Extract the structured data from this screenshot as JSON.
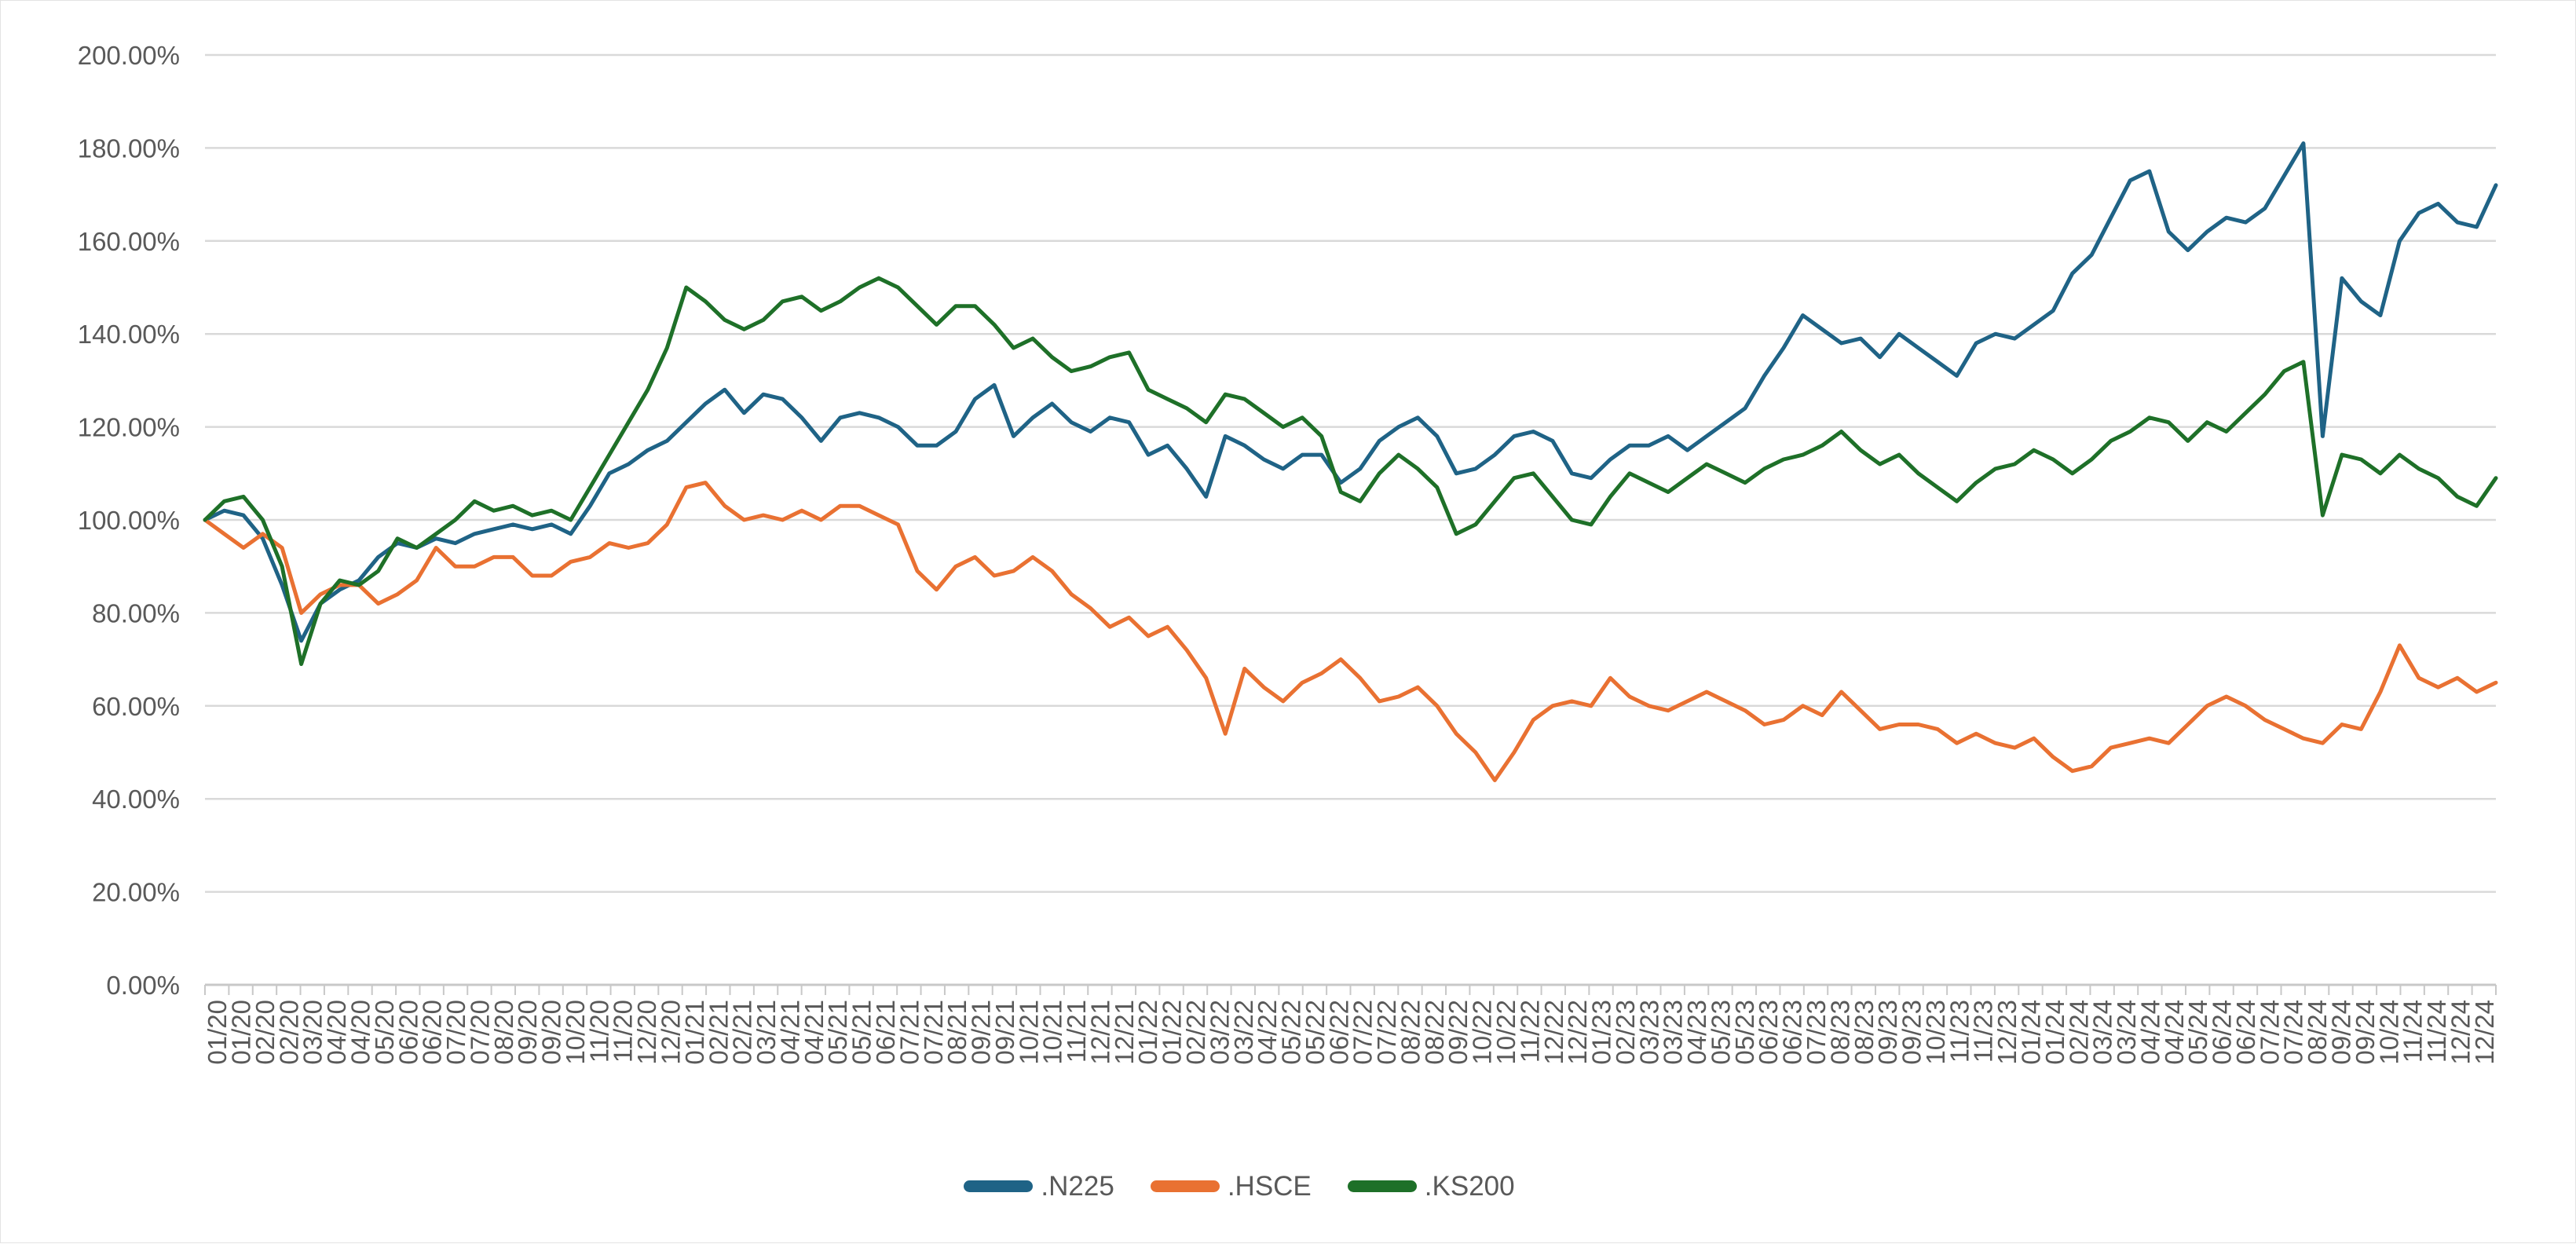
{
  "chart_data": {
    "type": "line",
    "title": "",
    "xlabel": "",
    "ylabel": "",
    "grid": true,
    "legend_position": "bottom",
    "y_axis": {
      "min": 0,
      "max": 200,
      "step": 20,
      "tick_labels": [
        "0.00%",
        "20.00%",
        "40.00%",
        "60.00%",
        "80.00%",
        "100.00%",
        "120.00%",
        "140.00%",
        "160.00%",
        "180.00%",
        "200.00%"
      ]
    },
    "x_axis": {
      "tick_labels": [
        "01/20",
        "01/20",
        "02/20",
        "02/20",
        "03/20",
        "04/20",
        "04/20",
        "05/20",
        "06/20",
        "06/20",
        "07/20",
        "07/20",
        "08/20",
        "09/20",
        "09/20",
        "10/20",
        "11/20",
        "11/20",
        "12/20",
        "12/20",
        "01/21",
        "02/21",
        "02/21",
        "03/21",
        "04/21",
        "04/21",
        "05/21",
        "05/21",
        "06/21",
        "07/21",
        "07/21",
        "08/21",
        "09/21",
        "09/21",
        "10/21",
        "10/21",
        "11/21",
        "12/21",
        "12/21",
        "01/22",
        "01/22",
        "02/22",
        "03/22",
        "03/22",
        "04/22",
        "05/22",
        "05/22",
        "06/22",
        "07/22",
        "07/22",
        "08/22",
        "08/22",
        "09/22",
        "10/22",
        "10/22",
        "11/22",
        "12/22",
        "12/22",
        "01/23",
        "02/23",
        "03/23",
        "03/23",
        "04/23",
        "05/23",
        "05/23",
        "06/23",
        "06/23",
        "07/23",
        "08/23",
        "08/23",
        "09/23",
        "09/23",
        "10/23",
        "11/23",
        "11/23",
        "12/23",
        "01/24",
        "01/24",
        "02/24",
        "03/24",
        "03/24",
        "04/24",
        "04/24",
        "05/24",
        "06/24",
        "06/24",
        "07/24",
        "07/24",
        "08/24",
        "09/24",
        "09/24",
        "10/24",
        "11/24",
        "11/24",
        "12/24",
        "12/24"
      ]
    },
    "series": [
      {
        "name": ".N225",
        "color": "#1F6386",
        "values": [
          100,
          102,
          101,
          96,
          86,
          74,
          82,
          85,
          87,
          92,
          95,
          94,
          96,
          95,
          97,
          98,
          99,
          98,
          99,
          97,
          103,
          110,
          112,
          115,
          117,
          121,
          125,
          128,
          123,
          127,
          126,
          122,
          117,
          122,
          123,
          122,
          120,
          116,
          116,
          119,
          126,
          129,
          118,
          122,
          125,
          121,
          119,
          122,
          121,
          114,
          116,
          111,
          105,
          118,
          116,
          113,
          111,
          114,
          114,
          108,
          111,
          117,
          120,
          122,
          118,
          110,
          111,
          114,
          118,
          119,
          117,
          110,
          109,
          113,
          116,
          116,
          118,
          115,
          118,
          121,
          124,
          131,
          137,
          144,
          141,
          138,
          139,
          135,
          140,
          137,
          134,
          131,
          138,
          140,
          139,
          142,
          145,
          153,
          157,
          165,
          173,
          175,
          162,
          158,
          162,
          165,
          164,
          167,
          174,
          181,
          118,
          152,
          147,
          144,
          160,
          166,
          168,
          164,
          163,
          172
        ]
      },
      {
        "name": ".HSCE",
        "color": "#E97132",
        "values": [
          100,
          97,
          94,
          97,
          94,
          80,
          84,
          86,
          86,
          82,
          84,
          87,
          94,
          90,
          90,
          92,
          92,
          88,
          88,
          91,
          92,
          95,
          94,
          95,
          99,
          107,
          108,
          103,
          100,
          101,
          100,
          102,
          100,
          103,
          103,
          101,
          99,
          89,
          85,
          90,
          92,
          88,
          89,
          92,
          89,
          84,
          81,
          77,
          79,
          75,
          77,
          72,
          66,
          54,
          68,
          64,
          61,
          65,
          67,
          70,
          66,
          61,
          62,
          64,
          60,
          54,
          50,
          44,
          50,
          57,
          60,
          61,
          60,
          66,
          62,
          60,
          59,
          61,
          63,
          61,
          59,
          56,
          57,
          60,
          58,
          63,
          59,
          55,
          56,
          56,
          55,
          52,
          54,
          52,
          51,
          53,
          49,
          46,
          47,
          51,
          52,
          53,
          52,
          56,
          60,
          62,
          60,
          57,
          55,
          53,
          52,
          56,
          55,
          63,
          73,
          66,
          64,
          66,
          63,
          65
        ]
      },
      {
        "name": ".KS200",
        "color": "#1E7028",
        "values": [
          100,
          104,
          105,
          100,
          90,
          69,
          82,
          87,
          86,
          89,
          96,
          94,
          97,
          100,
          104,
          102,
          103,
          101,
          102,
          100,
          107,
          114,
          121,
          128,
          137,
          150,
          147,
          143,
          141,
          143,
          147,
          148,
          145,
          147,
          150,
          152,
          150,
          146,
          142,
          146,
          146,
          142,
          137,
          139,
          135,
          132,
          133,
          135,
          136,
          128,
          126,
          124,
          121,
          127,
          126,
          123,
          120,
          122,
          118,
          106,
          104,
          110,
          114,
          111,
          107,
          97,
          99,
          104,
          109,
          110,
          105,
          100,
          99,
          105,
          110,
          108,
          106,
          109,
          112,
          110,
          108,
          111,
          113,
          114,
          116,
          119,
          115,
          112,
          114,
          110,
          107,
          104,
          108,
          111,
          112,
          115,
          113,
          110,
          113,
          117,
          119,
          122,
          121,
          117,
          121,
          119,
          123,
          127,
          132,
          134,
          101,
          114,
          113,
          110,
          114,
          111,
          109,
          105,
          103,
          109
        ]
      }
    ],
    "colors": {
      "gridline": "#D9D9D9",
      "axis_line": "#C8C8C8",
      "tick_mark": "#C8C8C8",
      "tick_label": "#595959",
      "background": "#FFFFFF"
    }
  }
}
